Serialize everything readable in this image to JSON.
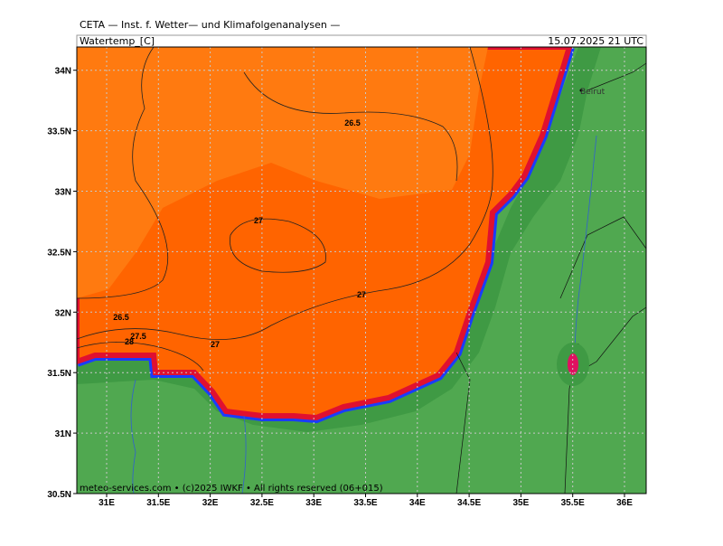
{
  "header": {
    "title": "CETA — Inst. f. Wetter— und Klimafolgenanalysen —",
    "variable": "Watertemp_[C]",
    "valid_time": "15.07.2025 21 UTC"
  },
  "lat_ticks": [
    {
      "value": 34,
      "label": "34N"
    },
    {
      "value": 33.5,
      "label": "33.5N"
    },
    {
      "value": 33,
      "label": "33N"
    },
    {
      "value": 32.5,
      "label": "32.5N"
    },
    {
      "value": 32,
      "label": "32N"
    },
    {
      "value": 31.5,
      "label": "31.5N"
    },
    {
      "value": 31,
      "label": "31N"
    },
    {
      "value": 30.5,
      "label": "30.5N"
    }
  ],
  "lon_ticks": [
    {
      "value": 31,
      "label": "31E"
    },
    {
      "value": 31.5,
      "label": "31.5E"
    },
    {
      "value": 32,
      "label": "32E"
    },
    {
      "value": 32.5,
      "label": "32.5E"
    },
    {
      "value": 33,
      "label": "33E"
    },
    {
      "value": 33.5,
      "label": "33.5E"
    },
    {
      "value": 34,
      "label": "34E"
    },
    {
      "value": 34.5,
      "label": "34.5E"
    },
    {
      "value": 35,
      "label": "35E"
    },
    {
      "value": 35.5,
      "label": "35.5E"
    },
    {
      "value": 36,
      "label": "36E"
    }
  ],
  "contour_labels": [
    "26.5",
    "27",
    "27",
    "26.5",
    "27.5",
    "28",
    "27"
  ],
  "places": [
    "Beirut"
  ],
  "footer": "meteo-services.com • (c)2025 IWKF • All rights reserved (06+015)"
}
